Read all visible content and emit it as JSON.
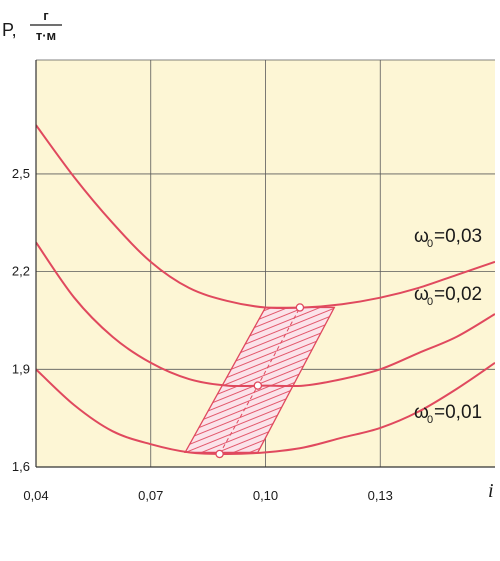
{
  "chart_data": {
    "type": "line",
    "ylabel_symbol": "P,",
    "ylabel_unit_top": "г",
    "ylabel_unit_bottom": "т·м",
    "xlabel": "i",
    "xlim": [
      0.04,
      0.16
    ],
    "ylim": [
      1.6,
      2.85
    ],
    "xticks": [
      0.04,
      0.07,
      0.1,
      0.13
    ],
    "xtick_labels": [
      "0,04",
      "0,07",
      "0,10",
      "0,13"
    ],
    "yticks": [
      1.6,
      1.9,
      2.2,
      2.5
    ],
    "ytick_labels": [
      "1,6",
      "1,9",
      "2,2",
      "2,5"
    ],
    "grid": true,
    "series": [
      {
        "name": "ω0=0,03",
        "label_main": "ω",
        "label_sub": "0",
        "label_value": "=0,03",
        "x": [
          0.04,
          0.05,
          0.06,
          0.07,
          0.08,
          0.09,
          0.1,
          0.11,
          0.12,
          0.13,
          0.14,
          0.15,
          0.16
        ],
        "y": [
          2.65,
          2.49,
          2.35,
          2.23,
          2.15,
          2.11,
          2.09,
          2.09,
          2.1,
          2.12,
          2.15,
          2.19,
          2.23
        ]
      },
      {
        "name": "ω0=0,02",
        "label_main": "ω",
        "label_sub": "0",
        "label_value": "=0,02",
        "x": [
          0.04,
          0.05,
          0.06,
          0.07,
          0.08,
          0.09,
          0.1,
          0.11,
          0.12,
          0.13,
          0.14,
          0.15,
          0.16
        ],
        "y": [
          2.29,
          2.12,
          2.0,
          1.92,
          1.87,
          1.85,
          1.85,
          1.85,
          1.87,
          1.9,
          1.95,
          2.0,
          2.07
        ]
      },
      {
        "name": "ω0=0,01",
        "label_main": "ω",
        "label_sub": "0",
        "label_value": "=0,01",
        "x": [
          0.04,
          0.05,
          0.06,
          0.07,
          0.08,
          0.09,
          0.1,
          0.11,
          0.12,
          0.13,
          0.14,
          0.15,
          0.16
        ],
        "y": [
          1.9,
          1.79,
          1.71,
          1.67,
          1.645,
          1.64,
          1.645,
          1.66,
          1.69,
          1.72,
          1.77,
          1.84,
          1.92
        ]
      }
    ],
    "optimal_points": [
      {
        "x": 0.088,
        "y": 1.64
      },
      {
        "x": 0.098,
        "y": 1.85
      },
      {
        "x": 0.109,
        "y": 2.09
      }
    ],
    "shaded_region": [
      {
        "x": 0.079,
        "y": 1.645
      },
      {
        "x": 0.098,
        "y": 1.645
      },
      {
        "x": 0.118,
        "y": 2.09
      },
      {
        "x": 0.1,
        "y": 2.09
      }
    ],
    "colors": {
      "curve": "#e0495e",
      "hatch": "#e0495e",
      "region_fill": "#fbe3ea",
      "plot_bg": "#fdf6d5",
      "grid": "#5a5a5a",
      "axis": "#333333",
      "marker_fill": "#ffffff"
    }
  }
}
